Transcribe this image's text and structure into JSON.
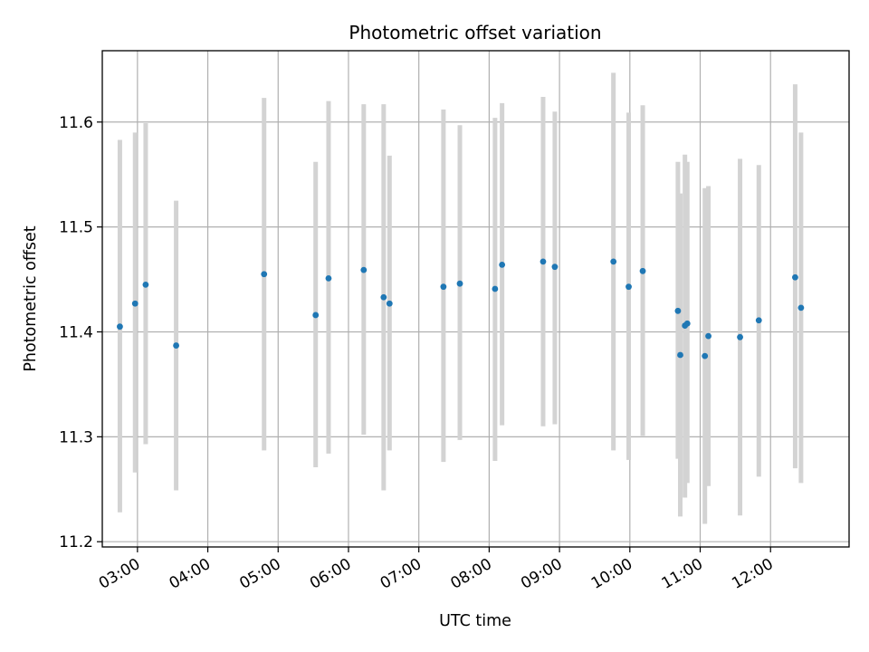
{
  "chart_data": {
    "type": "scatter",
    "title": "Photometric offset variation",
    "xlabel": "UTC time",
    "ylabel": "Photometric offset",
    "xlim": [
      "02:30",
      "13:07"
    ],
    "ylim": [
      11.195,
      11.668
    ],
    "x_tick_labels": [
      "03:00",
      "04:00",
      "05:00",
      "06:00",
      "07:00",
      "08:00",
      "09:00",
      "10:00",
      "11:00",
      "12:00"
    ],
    "y_tick_labels": [
      "11.2",
      "11.3",
      "11.4",
      "11.5",
      "11.6"
    ],
    "grid": true,
    "colors": {
      "point": "#1f77b4",
      "errorbar": "#d3d3d3"
    },
    "series": [
      {
        "points": [
          {
            "x": "02:45",
            "y": 11.405,
            "low": 11.228,
            "high": 11.583
          },
          {
            "x": "02:58",
            "y": 11.427,
            "low": 11.266,
            "high": 11.59
          },
          {
            "x": "03:07",
            "y": 11.445,
            "low": 11.293,
            "high": 11.599
          },
          {
            "x": "03:33",
            "y": 11.387,
            "low": 11.249,
            "high": 11.525
          },
          {
            "x": "04:48",
            "y": 11.455,
            "low": 11.287,
            "high": 11.623
          },
          {
            "x": "05:32",
            "y": 11.416,
            "low": 11.271,
            "high": 11.562
          },
          {
            "x": "05:43",
            "y": 11.451,
            "low": 11.284,
            "high": 11.62
          },
          {
            "x": "06:13",
            "y": 11.459,
            "low": 11.302,
            "high": 11.617
          },
          {
            "x": "06:30",
            "y": 11.433,
            "low": 11.249,
            "high": 11.617
          },
          {
            "x": "06:35",
            "y": 11.427,
            "low": 11.287,
            "high": 11.568
          },
          {
            "x": "07:21",
            "y": 11.443,
            "low": 11.276,
            "high": 11.612
          },
          {
            "x": "07:35",
            "y": 11.446,
            "low": 11.297,
            "high": 11.597
          },
          {
            "x": "08:05",
            "y": 11.441,
            "low": 11.277,
            "high": 11.604
          },
          {
            "x": "08:11",
            "y": 11.464,
            "low": 11.311,
            "high": 11.618
          },
          {
            "x": "08:46",
            "y": 11.467,
            "low": 11.31,
            "high": 11.624
          },
          {
            "x": "08:56",
            "y": 11.462,
            "low": 11.312,
            "high": 11.61
          },
          {
            "x": "09:46",
            "y": 11.467,
            "low": 11.287,
            "high": 11.647
          },
          {
            "x": "09:59",
            "y": 11.443,
            "low": 11.278,
            "high": 11.609
          },
          {
            "x": "10:11",
            "y": 11.458,
            "low": 11.301,
            "high": 11.616
          },
          {
            "x": "10:41",
            "y": 11.42,
            "low": 11.279,
            "high": 11.562
          },
          {
            "x": "10:43",
            "y": 11.378,
            "low": 11.224,
            "high": 11.532
          },
          {
            "x": "10:47",
            "y": 11.406,
            "low": 11.242,
            "high": 11.569
          },
          {
            "x": "10:49",
            "y": 11.408,
            "low": 11.256,
            "high": 11.562
          },
          {
            "x": "11:04",
            "y": 11.377,
            "low": 11.217,
            "high": 11.537
          },
          {
            "x": "11:07",
            "y": 11.396,
            "low": 11.253,
            "high": 11.539
          },
          {
            "x": "11:34",
            "y": 11.395,
            "low": 11.225,
            "high": 11.565
          },
          {
            "x": "11:50",
            "y": 11.411,
            "low": 11.262,
            "high": 11.559
          },
          {
            "x": "12:21",
            "y": 11.452,
            "low": 11.27,
            "high": 11.636
          },
          {
            "x": "12:26",
            "y": 11.423,
            "low": 11.256,
            "high": 11.59
          }
        ]
      }
    ]
  }
}
